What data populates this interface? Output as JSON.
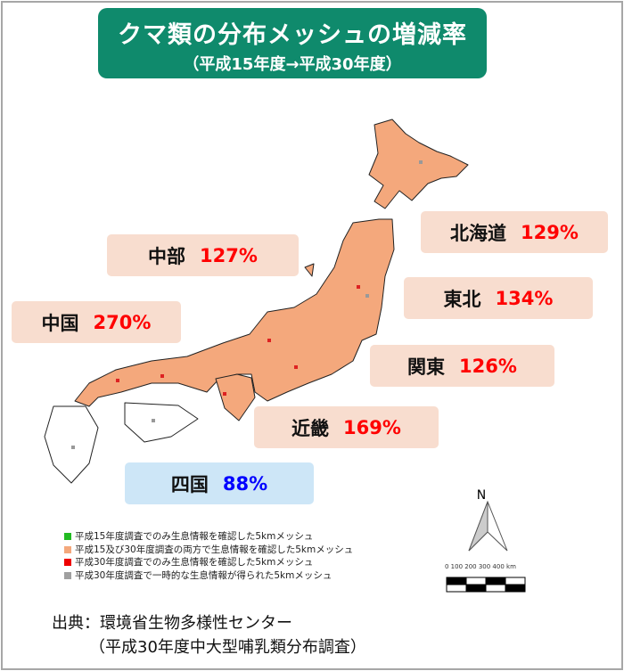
{
  "title": {
    "main": "クマ類の分布メッシュの増減率",
    "sub": "（平成15年度→平成30年度）"
  },
  "regions": [
    {
      "name": "北海道",
      "rate": "129%"
    },
    {
      "name": "中部",
      "rate": "127%"
    },
    {
      "name": "東北",
      "rate": "134%"
    },
    {
      "name": "中国",
      "rate": "270%"
    },
    {
      "name": "関東",
      "rate": "126%"
    },
    {
      "name": "近畿",
      "rate": "169%"
    },
    {
      "name": "四国",
      "rate": "88%"
    }
  ],
  "legend": [
    {
      "label": "平成15年度調査でのみ生息情報を確認した5kmメッシュ",
      "color": "#22bb22"
    },
    {
      "label": "平成15及び30年度調査の両方で生息情報を確認した5kmメッシュ",
      "color": "#f4a87c"
    },
    {
      "label": "平成30年度調査でのみ生息情報を確認した5kmメッシュ",
      "color": "#ee0000"
    },
    {
      "label": "平成30年度調査で一時的な生息情報が得られた5kmメッシュ",
      "color": "#a0a0a0"
    }
  ],
  "north_arrow": "N",
  "scale": {
    "ticks": "0  100 200 300 400 km"
  },
  "source": {
    "line1": "出典：環境省生物多様性センター",
    "line2": "（平成30年度中大型哺乳類分布調査）"
  },
  "colors": {
    "title_bg": "#0f8a6c",
    "box_bg": "#f8ddcf",
    "shikoku_bg": "#cde6f7",
    "increase": "#ff0000",
    "decrease": "#0000ff",
    "mesh": "#f4a87c"
  }
}
